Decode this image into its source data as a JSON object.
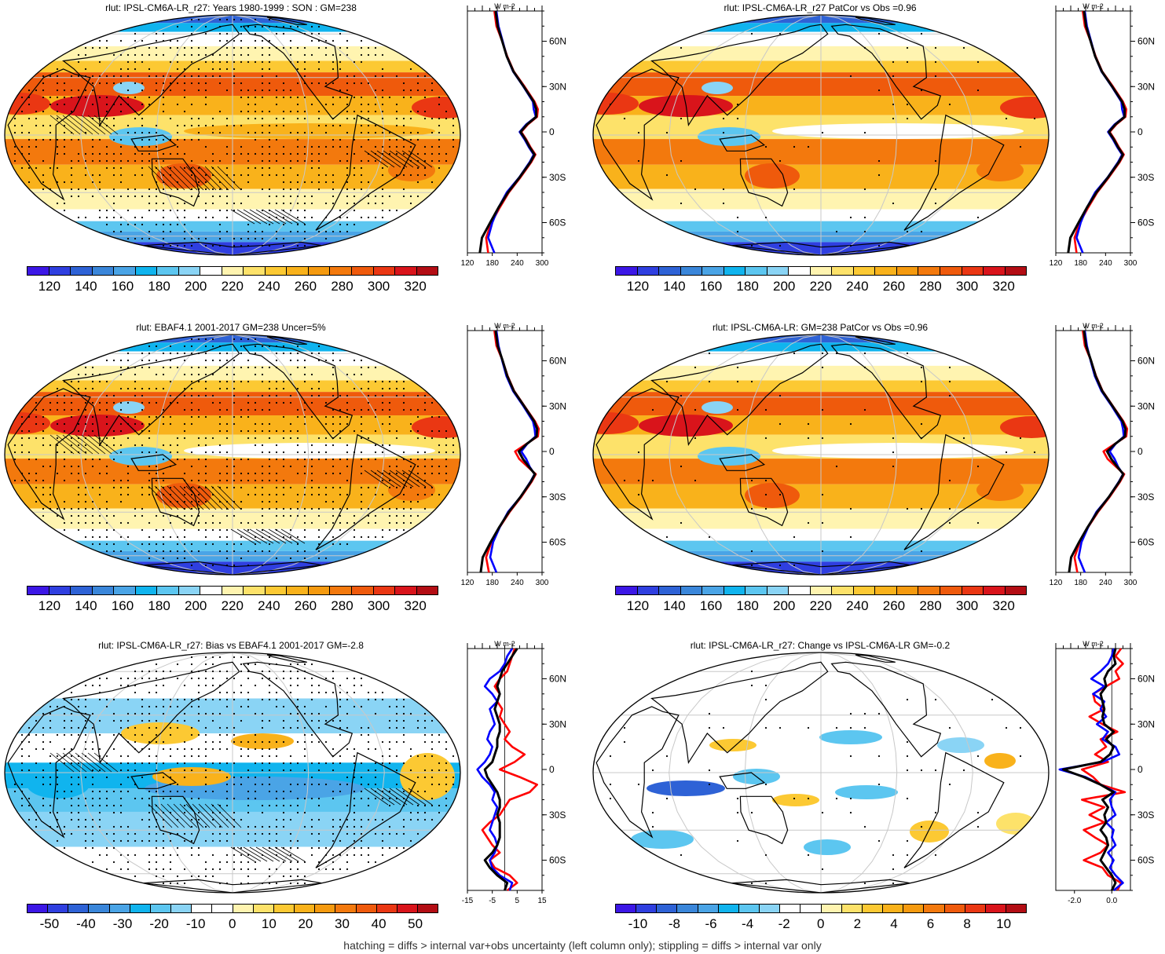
{
  "colors": {
    "abs": [
      "#3c17e6",
      "#2f3fe0",
      "#2e62d6",
      "#3a86da",
      "#4aa4e6",
      "#10b4ee",
      "#5cc6f0",
      "#8ad4f5",
      "#ffffff",
      "#fff4b0",
      "#fde26a",
      "#fcc933",
      "#f9b21b",
      "#f59a0f",
      "#f3790d",
      "#ef5a0c",
      "#ea3713",
      "#d9141b",
      "#b30d14"
    ],
    "diff": [
      "#3c17e6",
      "#2f3fe0",
      "#2e62d6",
      "#3a86da",
      "#4aa4e6",
      "#10b4ee",
      "#5cc6f0",
      "#8ad4f5",
      "#ffffff",
      "#ffffff",
      "#fff4b0",
      "#fde26a",
      "#fcc933",
      "#f9b21b",
      "#f59a0f",
      "#f3790d",
      "#ef5a0c",
      "#ea3713",
      "#d9141b",
      "#b30d14"
    ],
    "land": "#000000",
    "grid": "#c8c8c8",
    "line_model": "#0000ff",
    "line_obs": "#ff0000",
    "line_black": "#000000"
  },
  "footnote": "hatching = diffs > internal var+obs uncertainty (left column only); stippling = diffs > internal var only",
  "chart_data": [
    {
      "type": "heatmap",
      "title": "rlut: IPSL-CM6A-LR_r27: Years 1980-1999 : SON : GM=238",
      "colorbar_ticks": [
        "120",
        "140",
        "160",
        "180",
        "200",
        "220",
        "240",
        "260",
        "280",
        "300",
        "320"
      ],
      "pattern": "abs",
      "stipple": "dense",
      "hatch": true,
      "zonal": {
        "xlim": [
          120,
          300
        ],
        "xticks": [
          "120",
          "180",
          "240",
          "300"
        ],
        "unit": "W m-2",
        "lat": [
          -80,
          -70,
          -60,
          -50,
          -40,
          -30,
          -20,
          -15,
          -10,
          -5,
          0,
          5,
          10,
          15,
          20,
          30,
          40,
          50,
          60,
          70,
          80
        ],
        "series": [
          {
            "name": "blue",
            "values": [
              185,
              170,
              180,
              195,
              215,
              245,
              270,
              280,
              268,
              258,
              246,
              262,
              285,
              280,
              278,
              255,
              230,
              215,
              205,
              195,
              190
            ]
          },
          {
            "name": "red",
            "values": [
              170,
              165,
              178,
              198,
              220,
              248,
              274,
              284,
              272,
              262,
              250,
              266,
              288,
              290,
              282,
              258,
              232,
              216,
              204,
              190,
              185
            ]
          },
          {
            "name": "black",
            "values": [
              150,
              155,
              175,
              195,
              218,
              246,
              272,
              282,
              270,
              260,
              248,
              264,
              286,
              286,
              280,
              256,
              231,
              215,
              204,
              193,
              188
            ]
          }
        ],
        "ylabels": [
          "60N",
          "30N",
          "0",
          "30S",
          "60S"
        ]
      }
    },
    {
      "type": "heatmap",
      "title": "rlut: IPSL-CM6A-LR_r27 PatCor vs Obs =0.96",
      "colorbar_ticks": [
        "120",
        "140",
        "160",
        "180",
        "200",
        "220",
        "240",
        "260",
        "280",
        "300",
        "320"
      ],
      "pattern": "abs",
      "stipple": "sparse",
      "hatch": false,
      "zonal": {
        "xlim": [
          120,
          300
        ],
        "xticks": [
          "120",
          "180",
          "240",
          "300"
        ],
        "unit": "W m-2",
        "lat": [
          -80,
          -70,
          -60,
          -50,
          -40,
          -30,
          -20,
          -15,
          -10,
          -5,
          0,
          5,
          10,
          15,
          20,
          30,
          40,
          50,
          60,
          70,
          80
        ],
        "series": [
          {
            "name": "blue",
            "values": [
              185,
              170,
              180,
              195,
              215,
              245,
              270,
              280,
              268,
              258,
              246,
              262,
              285,
              280,
              278,
              255,
              230,
              215,
              205,
              195,
              190
            ]
          },
          {
            "name": "red",
            "values": [
              170,
              165,
              178,
              198,
              220,
              248,
              274,
              284,
              272,
              262,
              250,
              266,
              288,
              290,
              282,
              258,
              232,
              216,
              204,
              190,
              185
            ]
          },
          {
            "name": "black",
            "values": [
              150,
              155,
              175,
              195,
              218,
              246,
              272,
              282,
              270,
              260,
              248,
              264,
              286,
              286,
              280,
              256,
              231,
              215,
              204,
              193,
              188
            ]
          }
        ],
        "ylabels": [
          "60N",
          "30N",
          "0",
          "30S",
          "60S"
        ]
      }
    },
    {
      "type": "heatmap",
      "title": "rlut: EBAF4.1 2001-2017 GM=238 Uncer=5%",
      "colorbar_ticks": [
        "120",
        "140",
        "160",
        "180",
        "200",
        "220",
        "240",
        "260",
        "280",
        "300",
        "320"
      ],
      "pattern": "abs",
      "stipple": "dense",
      "hatch": true,
      "zonal": {
        "xlim": [
          120,
          300
        ],
        "xticks": [
          "120",
          "180",
          "240",
          "300"
        ],
        "unit": "W m-2",
        "lat": [
          -80,
          -70,
          -60,
          -50,
          -40,
          -30,
          -20,
          -15,
          -10,
          -5,
          0,
          5,
          10,
          15,
          20,
          30,
          40,
          50,
          60,
          70,
          80
        ],
        "series": [
          {
            "name": "blue",
            "values": [
              190,
              175,
              182,
              198,
              218,
              248,
              272,
              282,
              270,
              262,
              250,
              264,
              284,
              282,
              278,
              255,
              230,
              214,
              204,
              195,
              190
            ]
          },
          {
            "name": "red",
            "values": [
              172,
              165,
              178,
              198,
              222,
              250,
              275,
              285,
              265,
              245,
              235,
              262,
              290,
              292,
              283,
              258,
              233,
              217,
              205,
              190,
              185
            ]
          },
          {
            "name": "black",
            "values": [
              152,
              157,
              176,
              197,
              220,
              248,
              273,
              283,
              268,
              254,
              244,
              263,
              287,
              288,
              281,
              257,
              232,
              216,
              205,
              193,
              188
            ]
          }
        ],
        "ylabels": [
          "60N",
          "30N",
          "0",
          "30S",
          "60S"
        ]
      }
    },
    {
      "type": "heatmap",
      "title": "rlut: IPSL-CM6A-LR: GM=238 PatCor vs Obs =0.96",
      "colorbar_ticks": [
        "120",
        "140",
        "160",
        "180",
        "200",
        "220",
        "240",
        "260",
        "280",
        "300",
        "320"
      ],
      "pattern": "abs",
      "stipple": "sparse",
      "hatch": false,
      "zonal": {
        "xlim": [
          120,
          300
        ],
        "xticks": [
          "120",
          "180",
          "240",
          "300"
        ],
        "unit": "W m-2",
        "lat": [
          -80,
          -70,
          -60,
          -50,
          -40,
          -30,
          -20,
          -15,
          -10,
          -5,
          0,
          5,
          10,
          15,
          20,
          30,
          40,
          50,
          60,
          70,
          80
        ],
        "series": [
          {
            "name": "blue",
            "values": [
              190,
              175,
              182,
              198,
              218,
              248,
              272,
              282,
              270,
              262,
              250,
              264,
              284,
              282,
              278,
              255,
              230,
              214,
              204,
              195,
              190
            ]
          },
          {
            "name": "red",
            "values": [
              172,
              165,
              178,
              198,
              222,
              250,
              275,
              285,
              265,
              245,
              235,
              262,
              290,
              292,
              283,
              258,
              233,
              217,
              205,
              190,
              185
            ]
          },
          {
            "name": "black",
            "values": [
              152,
              157,
              176,
              197,
              220,
              248,
              273,
              283,
              268,
              254,
              244,
              263,
              287,
              288,
              281,
              257,
              232,
              216,
              205,
              193,
              188
            ]
          }
        ],
        "ylabels": [
          "60N",
          "30N",
          "0",
          "30S",
          "60S"
        ]
      }
    },
    {
      "type": "heatmap",
      "title": "rlut: IPSL-CM6A-LR_r27: Bias vs EBAF4.1 2001-2017  GM=-2.8",
      "colorbar_ticks": [
        "-50",
        "-40",
        "-30",
        "-20",
        "-10",
        "0",
        "10",
        "20",
        "30",
        "40",
        "50"
      ],
      "pattern": "diff",
      "stipple": "dense",
      "hatch": true,
      "zonal": {
        "xlim": [
          -15,
          15
        ],
        "xticks": [
          "-15",
          "-5",
          "5",
          "15"
        ],
        "unit": "W m-2",
        "lat": [
          -80,
          -75,
          -70,
          -65,
          -60,
          -55,
          -50,
          -45,
          -40,
          -35,
          -30,
          -25,
          -20,
          -15,
          -10,
          -5,
          0,
          5,
          10,
          15,
          20,
          25,
          30,
          35,
          40,
          45,
          50,
          55,
          60,
          65,
          70,
          75,
          80
        ],
        "series": [
          {
            "name": "blue",
            "values": [
              2,
              3,
              -2,
              -5,
              -6,
              -4,
              -3,
              -4,
              -6,
              -5,
              -4,
              -3,
              -5,
              -4,
              -6,
              -9,
              -11,
              -8,
              -6,
              -5,
              -7,
              -6,
              -4,
              -5,
              -6,
              -3,
              -5,
              -8,
              -6,
              -2,
              0,
              1,
              3
            ]
          },
          {
            "name": "red",
            "values": [
              1,
              5,
              2,
              -4,
              -6,
              -2,
              -5,
              -7,
              -9,
              -6,
              -2,
              0,
              2,
              10,
              13,
              6,
              -2,
              4,
              8,
              3,
              0,
              2,
              0,
              -2,
              -1,
              -3,
              -2,
              -4,
              -2,
              1,
              2,
              3,
              4
            ]
          },
          {
            "name": "black",
            "values": [
              0,
              1,
              -3,
              -6,
              -8,
              -5,
              -3,
              -2,
              -2,
              -2,
              -3,
              -2,
              -2,
              -3,
              -5,
              -7,
              -8,
              -5,
              -4,
              -3,
              -3,
              -2,
              -2,
              -3,
              -4,
              -3,
              -2,
              -3,
              -2,
              -1,
              1,
              3,
              5
            ]
          }
        ],
        "ylabels": [
          "60N",
          "30N",
          "0",
          "30S",
          "60S"
        ]
      }
    },
    {
      "type": "heatmap",
      "title": "rlut: IPSL-CM6A-LR_r27: Change vs IPSL-CM6A-LR GM=-0.2",
      "colorbar_ticks": [
        "-10",
        "-8",
        "-6",
        "-4",
        "-2",
        "0",
        "2",
        "4",
        "6",
        "8",
        "10"
      ],
      "pattern": "change",
      "stipple": "sparse",
      "hatch": false,
      "zonal": {
        "xlim": [
          -3,
          1
        ],
        "xticks": [
          "-2.0",
          "0.0"
        ],
        "unit": "W m-2",
        "lat": [
          -80,
          -75,
          -70,
          -65,
          -60,
          -55,
          -50,
          -45,
          -40,
          -35,
          -30,
          -25,
          -20,
          -15,
          -10,
          -5,
          0,
          5,
          10,
          15,
          20,
          25,
          30,
          35,
          40,
          45,
          50,
          55,
          60,
          65,
          70,
          75,
          80
        ],
        "series": [
          {
            "name": "blue",
            "values": [
              0.1,
              0.6,
              0.2,
              -0.1,
              0.1,
              -0.2,
              0.2,
              0,
              0.1,
              -0.3,
              0.2,
              0,
              -0.1,
              0.2,
              -0.6,
              -1.4,
              -2.8,
              -0.5,
              0.4,
              0.2,
              -0.5,
              -0.2,
              -0.8,
              -0.3,
              -0.6,
              -0.4,
              -1.0,
              -0.4,
              -1.1,
              -0.6,
              -0.2,
              0,
              0.1
            ]
          },
          {
            "name": "red",
            "values": [
              0.3,
              0.5,
              -0.2,
              -0.5,
              -1.5,
              -0.6,
              -0.2,
              -0.9,
              -1.5,
              -0.4,
              -1.2,
              -0.4,
              -1.6,
              0.7,
              -0.6,
              -1.0,
              -1.6,
              -0.2,
              -0.9,
              -0.3,
              -0.6,
              0.3,
              -0.5,
              -1.2,
              -0.4,
              -0.9,
              -1.0,
              -0.3,
              0.4,
              0.2,
              0.6,
              0.2,
              0.5
            ]
          },
          {
            "name": "black",
            "values": [
              0,
              0.2,
              0,
              -0.3,
              -0.6,
              -0.4,
              -0.2,
              -0.3,
              -0.6,
              -0.3,
              -0.4,
              -0.2,
              -0.5,
              0.1,
              -0.6,
              -1.5,
              -2.6,
              -0.6,
              -0.1,
              0.1,
              -0.3,
              0.1,
              -0.4,
              -0.5,
              -0.4,
              -0.5,
              -0.6,
              -0.3,
              -0.4,
              -0.2,
              0.2,
              0.1,
              0.2
            ]
          }
        ],
        "ylabels": [
          "60N",
          "30N",
          "0",
          "30S",
          "60S"
        ]
      }
    }
  ]
}
